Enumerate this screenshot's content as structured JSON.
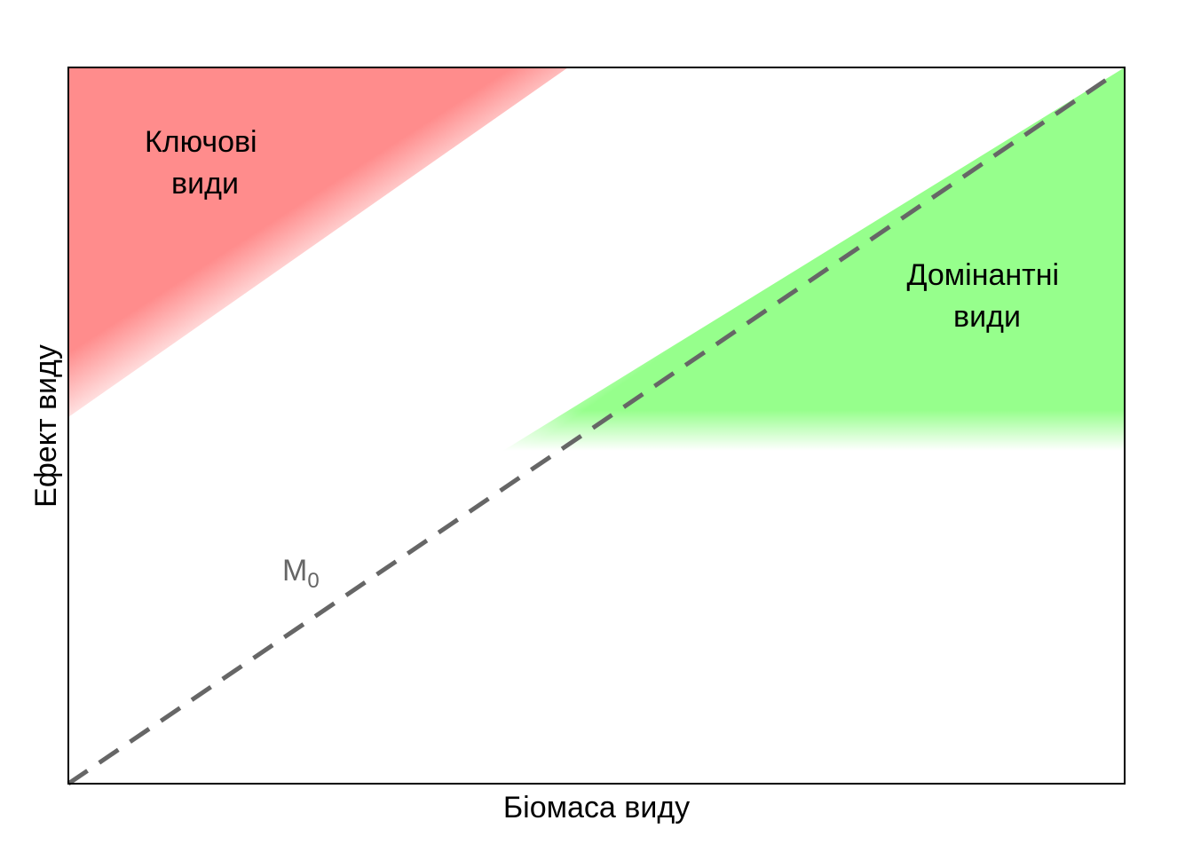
{
  "diagram": {
    "xlabel": "Біомаса виду",
    "ylabel": "Ефект виду",
    "colors": {
      "keystone_region": "#ff8c8c",
      "dominant_region": "#96ff8c",
      "reference_line": "#666666",
      "frame": "#000000"
    },
    "regions": {
      "keystone": {
        "label_line1": "Ключові",
        "label_line2": "види"
      },
      "dominant": {
        "label_line1": "Домінантні",
        "label_line2": "види"
      }
    },
    "reference_line": {
      "label": "M",
      "label_subscript": "0",
      "style": "dashed"
    }
  }
}
